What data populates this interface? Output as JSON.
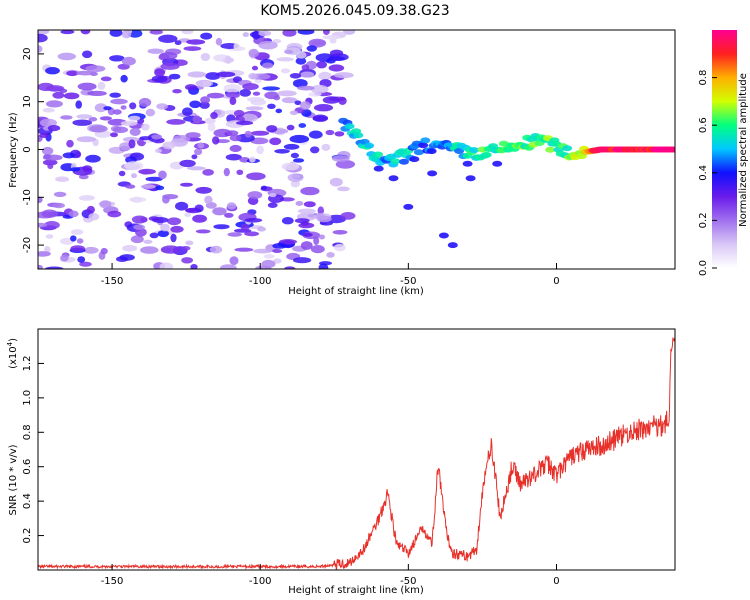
{
  "title": "KOM5.2026.045.09.38.G23",
  "chart_data": [
    {
      "type": "heatmap",
      "name": "spectrogram",
      "xlabel": "Height of straight line (km)",
      "ylabel": "Frequency (Hz)",
      "xlim": [
        -175,
        40
      ],
      "ylim": [
        -25,
        25
      ],
      "xticks": [
        -150,
        -100,
        -50,
        0
      ],
      "yticks": [
        -20,
        -10,
        0,
        10,
        20
      ],
      "colorbar": {
        "label": "Normalized spectral amplitude",
        "range": [
          0,
          1
        ],
        "ticks": [
          0.0,
          0.2,
          0.4,
          0.6,
          0.8
        ],
        "colors": [
          "#ffffff",
          "#d9c7f6",
          "#a070ee",
          "#6a1bea",
          "#1010ff",
          "#00c8ff",
          "#00ff80",
          "#d0ff00",
          "#ffb000",
          "#ff2020",
          "#ff0090"
        ]
      },
      "features": {
        "noise_region_km": [
          -175,
          -70
        ],
        "noise_amplitude": 0.35,
        "signal_ridge": [
          {
            "x": -72,
            "f": 6,
            "a": 0.45
          },
          {
            "x": -64,
            "f": 0,
            "a": 0.55
          },
          {
            "x": -58,
            "f": -3,
            "a": 0.5
          },
          {
            "x": -50,
            "f": -1,
            "a": 0.5
          },
          {
            "x": -45,
            "f": 1,
            "a": 0.45
          },
          {
            "x": -35,
            "f": 0,
            "a": 0.5
          },
          {
            "x": -25,
            "f": -1,
            "a": 0.6
          },
          {
            "x": -12,
            "f": 1,
            "a": 0.6
          },
          {
            "x": -5,
            "f": 2,
            "a": 0.62
          },
          {
            "x": 5,
            "f": -1,
            "a": 0.6
          },
          {
            "x": 15,
            "f": 0,
            "a": 0.95
          },
          {
            "x": 40,
            "f": 0,
            "a": 0.95
          }
        ]
      }
    },
    {
      "type": "line",
      "name": "snr",
      "xlabel": "Height of straight line (km)",
      "ylabel": "SNR (10 * v/v)",
      "yscale_label": "(x10",
      "yscale_exp": "4",
      "yscale_close": ")",
      "xlim": [
        -175,
        40
      ],
      "ylim": [
        0,
        1.4
      ],
      "xticks": [
        -150,
        -100,
        -50,
        0
      ],
      "yticks": [
        0.2,
        0.4,
        0.6,
        0.8,
        1.0,
        1.2
      ],
      "series": [
        {
          "name": "SNR",
          "color": "#e8302a",
          "points": [
            [
              -175,
              0.02
            ],
            [
              -80,
              0.02
            ],
            [
              -70,
              0.04
            ],
            [
              -65,
              0.12
            ],
            [
              -60,
              0.3
            ],
            [
              -57,
              0.45
            ],
            [
              -54,
              0.15
            ],
            [
              -50,
              0.1
            ],
            [
              -45,
              0.25
            ],
            [
              -42,
              0.15
            ],
            [
              -40,
              0.6
            ],
            [
              -37,
              0.2
            ],
            [
              -35,
              0.1
            ],
            [
              -30,
              0.08
            ],
            [
              -27,
              0.12
            ],
            [
              -25,
              0.45
            ],
            [
              -22,
              0.75
            ],
            [
              -19,
              0.3
            ],
            [
              -15,
              0.6
            ],
            [
              -12,
              0.5
            ],
            [
              -8,
              0.55
            ],
            [
              -3,
              0.62
            ],
            [
              0,
              0.55
            ],
            [
              5,
              0.66
            ],
            [
              10,
              0.7
            ],
            [
              15,
              0.72
            ],
            [
              20,
              0.76
            ],
            [
              25,
              0.8
            ],
            [
              30,
              0.82
            ],
            [
              34,
              0.84
            ],
            [
              38,
              0.86
            ],
            [
              38.6,
              1.3
            ],
            [
              40,
              1.33
            ]
          ]
        }
      ]
    }
  ]
}
